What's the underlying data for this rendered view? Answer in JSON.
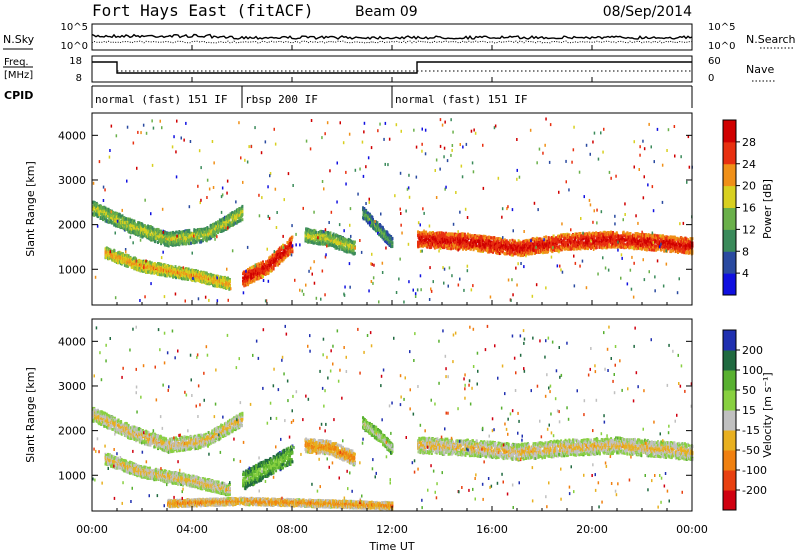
{
  "header": {
    "station": "Fort Hays East (fitACF)",
    "beam": "Beam 09",
    "date": "08/Sep/2014"
  },
  "top_panel": {
    "left_label": "N.Sky",
    "right_label": "N.Search",
    "left_ticks": [
      "10^5",
      "10^0"
    ],
    "right_ticks": [
      "10^5",
      "10^0"
    ]
  },
  "freq_panel": {
    "left_label_line1": "Freq.",
    "left_label_line2": "[MHz]",
    "right_label": "Nave",
    "left_ticks": [
      "18",
      "8"
    ],
    "right_ticks": [
      "60",
      "0"
    ],
    "freq_steps": [
      {
        "start_hr": 0,
        "end_hr": 1,
        "level": "high"
      },
      {
        "start_hr": 1,
        "end_hr": 13,
        "level": "low"
      },
      {
        "start_hr": 13,
        "end_hr": 24,
        "level": "high"
      }
    ]
  },
  "cpid": {
    "label": "CPID",
    "segments": [
      {
        "start_hr": 0,
        "end_hr": 6,
        "text": "normal (fast) 151 IF"
      },
      {
        "start_hr": 6,
        "end_hr": 12,
        "text": "rbsp 200 IF"
      },
      {
        "start_hr": 12,
        "end_hr": 24,
        "text": "normal (fast) 151 IF"
      }
    ]
  },
  "chart_data": [
    {
      "type": "heatmap",
      "title": "Power",
      "ylabel": "Slant Range [km]",
      "ylim": [
        200,
        4500
      ],
      "yticks": [
        "1000",
        "2000",
        "3000",
        "4000"
      ],
      "colorbar_label": "Power [dB]",
      "colorbar_ticks": [
        "4",
        "8",
        "12",
        "16",
        "20",
        "24",
        "28"
      ],
      "colors": [
        "#1010e0",
        "#2a4aa0",
        "#3a8a5a",
        "#6ab04a",
        "#d8d020",
        "#f09018",
        "#e83010",
        "#d00000"
      ],
      "bands": [
        {
          "x": [
            0.0,
            1.5,
            3.0,
            4.5,
            6.0
          ],
          "y": [
            2400,
            2000,
            1700,
            1800,
            2300
          ],
          "width": 300,
          "level": 3
        },
        {
          "x": [
            0.5,
            2.0,
            4.0,
            5.5
          ],
          "y": [
            1400,
            1100,
            900,
            700
          ],
          "width": 250,
          "level": 4
        },
        {
          "x": [
            6.0,
            7.0,
            8.0
          ],
          "y": [
            800,
            1100,
            1600
          ],
          "width": 350,
          "level": 6
        },
        {
          "x": [
            8.5,
            9.5,
            10.5
          ],
          "y": [
            1800,
            1700,
            1500
          ],
          "width": 300,
          "level": 3
        },
        {
          "x": [
            10.8,
            11.5,
            12.0
          ],
          "y": [
            2300,
            1900,
            1600
          ],
          "width": 250,
          "level": 2
        },
        {
          "x": [
            13.0,
            15.0,
            17.0,
            19.0,
            21.0,
            23.0,
            24.0
          ],
          "y": [
            1700,
            1650,
            1500,
            1650,
            1700,
            1600,
            1550
          ],
          "width": 350,
          "level": 6
        }
      ]
    },
    {
      "type": "heatmap",
      "title": "Velocity",
      "ylabel": "Slant Range [km]",
      "ylim": [
        200,
        4500
      ],
      "yticks": [
        "1000",
        "2000",
        "3000",
        "4000"
      ],
      "colorbar_label": "Velocity [m s⁻¹]",
      "colorbar_ticks": [
        "200",
        "100",
        "50",
        "15",
        "-15",
        "-50",
        "-100",
        "-200"
      ],
      "colors": [
        "#2030b0",
        "#206a40",
        "#58b030",
        "#88d040",
        "#c0c0c0",
        "#e8b020",
        "#f08010",
        "#e84010",
        "#d00010"
      ],
      "bands": [
        {
          "x": [
            0.0,
            1.5,
            3.0,
            4.5,
            6.0
          ],
          "y": [
            2400,
            2000,
            1700,
            1800,
            2300
          ],
          "width": 300,
          "level": 4
        },
        {
          "x": [
            0.5,
            2.0,
            4.0,
            5.5
          ],
          "y": [
            1400,
            1100,
            900,
            700
          ],
          "width": 250,
          "level": 4
        },
        {
          "x": [
            6.0,
            7.0,
            8.0
          ],
          "y": [
            900,
            1200,
            1500
          ],
          "width": 400,
          "level": 2
        },
        {
          "x": [
            8.5,
            9.5,
            10.5
          ],
          "y": [
            1700,
            1650,
            1400
          ],
          "width": 300,
          "level": 5
        },
        {
          "x": [
            10.8,
            11.5,
            12.0
          ],
          "y": [
            2200,
            1900,
            1600
          ],
          "width": 250,
          "level": 3
        },
        {
          "x": [
            13.0,
            15.0,
            17.0,
            19.0,
            21.0,
            23.0,
            24.0
          ],
          "y": [
            1700,
            1650,
            1550,
            1650,
            1700,
            1600,
            1550
          ],
          "width": 350,
          "level": 4
        },
        {
          "x": [
            3.0,
            6.0,
            9.0,
            12.0
          ],
          "y": [
            400,
            450,
            400,
            350
          ],
          "width": 150,
          "level": 5
        }
      ]
    }
  ],
  "x_axis": {
    "ticks": [
      "00:00",
      "04:00",
      "08:00",
      "12:00",
      "16:00",
      "20:00",
      "00:00"
    ],
    "label": "Time UT"
  }
}
